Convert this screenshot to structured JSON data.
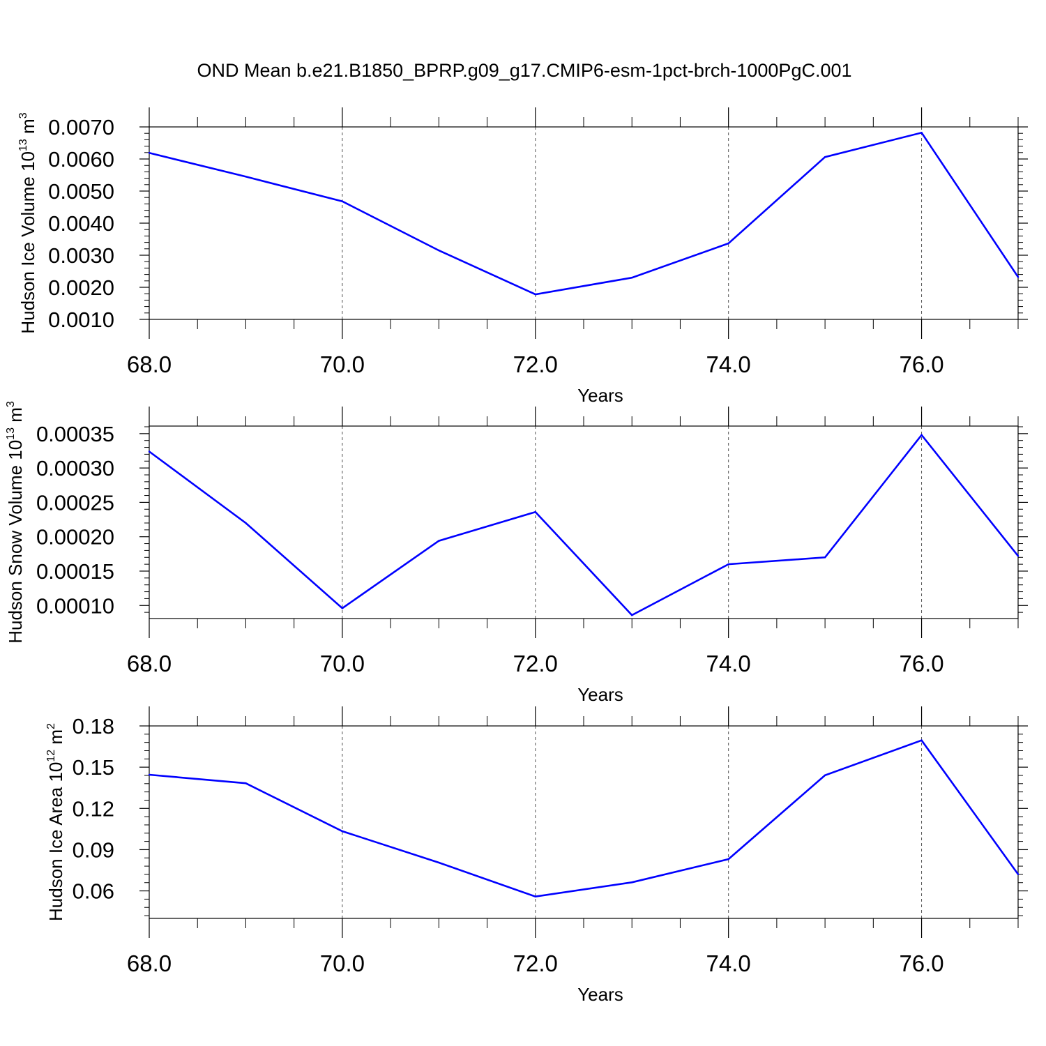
{
  "title": "OND Mean b.e21.B1850_BPRP.g09_g17.CMIP6-esm-1pct-brch-1000PgC.001",
  "colors": {
    "line": "#0000ff",
    "axis": "#000000",
    "grid": "#555555"
  },
  "chart_data": [
    {
      "type": "line",
      "xlabel": "Years",
      "ylabel": {
        "main": "Hudson Ice Volume 10",
        "exp": "13",
        "unit": " m",
        "unit_exp": "3"
      },
      "x": [
        68,
        69,
        70,
        71,
        72,
        73,
        74,
        75,
        76,
        77
      ],
      "series": [
        {
          "values": [
            0.00619,
            0.00545,
            0.00468,
            0.00315,
            0.00178,
            0.0023,
            0.00337,
            0.00606,
            0.00682,
            0.00232
          ]
        }
      ],
      "xlim": [
        68,
        77
      ],
      "ylim": [
        0.001,
        0.007
      ],
      "xticks": [
        "68.0",
        "70.0",
        "72.0",
        "74.0",
        "76.0"
      ],
      "xtick_values": [
        68,
        70,
        72,
        74,
        76
      ],
      "yticks": [
        "0.0010",
        "0.0020",
        "0.0030",
        "0.0040",
        "0.0050",
        "0.0060",
        "0.0070"
      ],
      "ytick_values": [
        0.001,
        0.002,
        0.003,
        0.004,
        0.005,
        0.006,
        0.007
      ],
      "grid": "x-dashed"
    },
    {
      "type": "line",
      "xlabel": "Years",
      "ylabel": {
        "main": "Hudson Snow Volume 10",
        "exp": "13",
        "unit": " m",
        "unit_exp": "3"
      },
      "x": [
        68,
        69,
        70,
        71,
        72,
        73,
        74,
        75,
        76,
        77
      ],
      "series": [
        {
          "values": [
            0.000324,
            0.00022,
            9.6e-05,
            0.000194,
            0.000236,
            8.6e-05,
            0.00016,
            0.00017,
            0.000348,
            0.000172
          ]
        }
      ],
      "xlim": [
        68,
        77
      ],
      "ylim": [
        8.1e-05,
        0.000361
      ],
      "xticks": [
        "68.0",
        "70.0",
        "72.0",
        "74.0",
        "76.0"
      ],
      "xtick_values": [
        68,
        70,
        72,
        74,
        76
      ],
      "yticks": [
        "0.00010",
        "0.00015",
        "0.00020",
        "0.00025",
        "0.00030",
        "0.00035"
      ],
      "ytick_values": [
        0.0001,
        0.00015,
        0.0002,
        0.00025,
        0.0003,
        0.00035
      ],
      "grid": "x-dashed"
    },
    {
      "type": "line",
      "xlabel": "Years",
      "ylabel": {
        "main": "Hudson Ice Area 10",
        "exp": "12",
        "unit": " m",
        "unit_exp": "2"
      },
      "x": [
        68,
        69,
        70,
        71,
        72,
        73,
        74,
        75,
        76,
        77
      ],
      "series": [
        {
          "values": [
            0.1445,
            0.1383,
            0.1034,
            0.0806,
            0.0559,
            0.0662,
            0.0831,
            0.1441,
            0.1695,
            0.0721
          ]
        }
      ],
      "xlim": [
        68,
        77
      ],
      "ylim": [
        0.04,
        0.18
      ],
      "xticks": [
        "68.0",
        "70.0",
        "72.0",
        "74.0",
        "76.0"
      ],
      "xtick_values": [
        68,
        70,
        72,
        74,
        76
      ],
      "yticks": [
        "0.06",
        "0.09",
        "0.12",
        "0.15",
        "0.18"
      ],
      "ytick_values": [
        0.06,
        0.09,
        0.12,
        0.15,
        0.18
      ],
      "grid": "x-dashed"
    }
  ]
}
